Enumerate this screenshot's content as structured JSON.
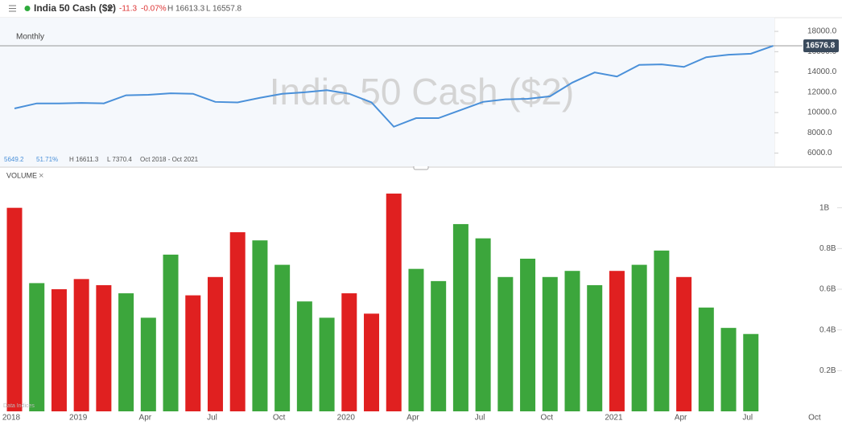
{
  "header": {
    "title": "India 50 Cash ($2)",
    "change": "-11.3",
    "change_pct": "-0.07%",
    "high": "H 16613.3",
    "low": "L 16557.8"
  },
  "chart_data": [
    {
      "type": "line",
      "label": "Monthly",
      "watermark": "India 50 Cash ($2)",
      "color": "#4a90d9",
      "stats": [
        "5649.2",
        "51.71%",
        "H 16611.3",
        "L 7370.4",
        "Oct 2018 - Oct 2021"
      ],
      "values": [
        10400,
        10900,
        10900,
        10950,
        10900,
        11700,
        11750,
        11900,
        11850,
        11050,
        11000,
        11450,
        11850,
        12000,
        12200,
        11850,
        11000,
        8600,
        9450,
        9450,
        10250,
        11050,
        11300,
        11350,
        11600,
        12950,
        13950,
        13550,
        14700,
        14750,
        14500,
        15450,
        15700,
        15800,
        16576.8,
        null,
        null
      ],
      "ylim": [
        4700,
        19350
      ],
      "yticks": [
        {
          "value": 6000,
          "label": "6000.0"
        },
        {
          "value": 8000,
          "label": "8000.0"
        },
        {
          "value": 10000,
          "label": "10000.0"
        },
        {
          "value": 12000,
          "label": "12000.0"
        },
        {
          "value": 14000,
          "label": "14000.0"
        },
        {
          "value": 16000,
          "label": "16000.0"
        },
        {
          "value": 18000,
          "label": "18000.0"
        }
      ]
    },
    {
      "type": "bar",
      "title": "VOLUME",
      "close": "×",
      "footnote": "Data Indices",
      "categories": [
        "2018",
        null,
        null,
        "2019",
        null,
        null,
        "Apr",
        null,
        null,
        "Jul",
        null,
        null,
        "Oct",
        null,
        null,
        "2020",
        null,
        null,
        "Apr",
        null,
        null,
        "Jul",
        null,
        null,
        "Oct",
        null,
        null,
        "2021",
        null,
        null,
        "Apr",
        null,
        null,
        "Jul",
        null,
        null,
        "Oct"
      ],
      "values": [
        1.0,
        0.63,
        0.6,
        0.65,
        0.62,
        0.58,
        0.46,
        0.77,
        0.57,
        0.66,
        0.88,
        0.84,
        0.72,
        0.54,
        0.46,
        0.58,
        0.48,
        1.07,
        0.7,
        0.64,
        0.92,
        0.85,
        0.66,
        0.75,
        0.66,
        0.69,
        0.62,
        0.69,
        0.72,
        0.79,
        0.66,
        0.51,
        0.41,
        0.38,
        null,
        null,
        null
      ],
      "colors": [
        "#e02020",
        "#3ca63c",
        "#e02020",
        "#e02020",
        "#e02020",
        "#3ca63c",
        "#3ca63c",
        "#3ca63c",
        "#e02020",
        "#e02020",
        "#e02020",
        "#3ca63c",
        "#3ca63c",
        "#3ca63c",
        "#3ca63c",
        "#e02020",
        "#e02020",
        "#e02020",
        "#3ca63c",
        "#3ca63c",
        "#3ca63c",
        "#3ca63c",
        "#3ca63c",
        "#3ca63c",
        "#3ca63c",
        "#3ca63c",
        "#3ca63c",
        "#e02020",
        "#3ca63c",
        "#3ca63c",
        "#e02020",
        "#3ca63c",
        "#3ca63c",
        "#3ca63c",
        null,
        null,
        null
      ],
      "ylim": [
        0,
        1.2
      ],
      "yticks": [
        {
          "value": 0.2,
          "label": "0.2B"
        },
        {
          "value": 0.4,
          "label": "0.4B"
        },
        {
          "value": 0.6,
          "label": "0.6B"
        },
        {
          "value": 0.8,
          "label": "0.8B"
        },
        {
          "value": 1,
          "label": "1B"
        }
      ]
    }
  ]
}
